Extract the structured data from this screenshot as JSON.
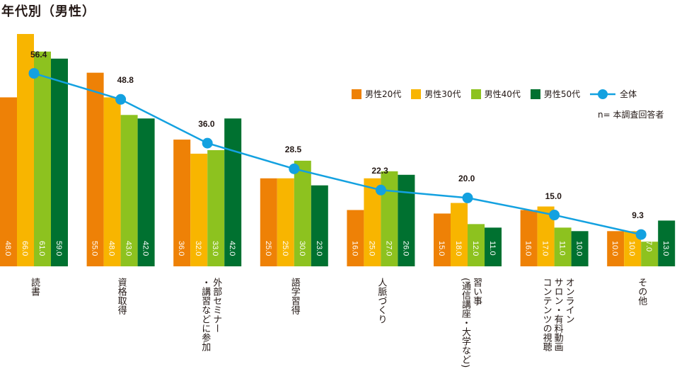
{
  "chart_data": {
    "type": "bar",
    "title": "年代別（男性）",
    "categories": [
      "読書",
      "資格取得",
      "外部セミナー\n・講習などに参加",
      "語学習得",
      "人脈づくり",
      "習い事\n(通信講座・大学など)",
      "オンライン\nサロン・有料動画\nコンテンツの視聴",
      "その他"
    ],
    "series": [
      {
        "name": "男性20代",
        "color": "#EE8106",
        "values": [
          48.0,
          55.0,
          36.0,
          25.0,
          16.0,
          15.0,
          16.0,
          10.0
        ]
      },
      {
        "name": "男性30代",
        "color": "#F8B500",
        "values": [
          66.0,
          48.0,
          32.0,
          25.0,
          25.0,
          18.0,
          17.0,
          10.0
        ]
      },
      {
        "name": "男性40代",
        "color": "#8DC21F",
        "values": [
          61.0,
          43.0,
          33.0,
          30.0,
          27.0,
          12.0,
          11.0,
          7.0
        ]
      },
      {
        "name": "男性50代",
        "color": "#007130",
        "values": [
          59.0,
          42.0,
          42.0,
          23.0,
          26.0,
          11.0,
          10.0,
          13.0
        ]
      }
    ],
    "line": {
      "name": "全体",
      "color": "#13A1E0",
      "values": [
        56.4,
        48.8,
        36.0,
        28.5,
        22.3,
        20.0,
        15.0,
        9.3
      ]
    },
    "ylim": [
      0,
      70
    ],
    "legend": "top-right",
    "note": "n= 本調査回答者",
    "grid": false
  }
}
